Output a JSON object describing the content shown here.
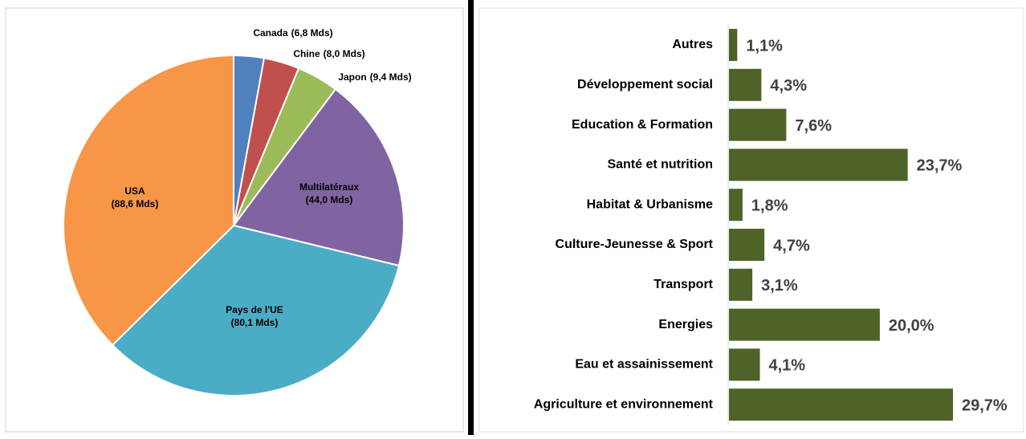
{
  "chart_data": [
    {
      "type": "pie",
      "categories": [
        "Canada",
        "Chine",
        "Japon",
        "Multilatéraux",
        "Pays de l'UE",
        "USA"
      ],
      "values": [
        6.8,
        8.0,
        9.4,
        44.0,
        80.1,
        88.6
      ],
      "value_labels": [
        "(6,8 Mds)",
        "(8,0 Mds)",
        "(9,4 Mds)",
        "(44,0 Mds)",
        "(80,1 Mds)",
        "(88,6 Mds)"
      ],
      "colors": [
        "#4f81bd",
        "#c0504d",
        "#9bbb59",
        "#8064a2",
        "#4bacc6",
        "#f79646"
      ]
    },
    {
      "type": "hbar",
      "categories": [
        "Autres",
        "Développement social",
        "Education & Formation",
        "Santé et nutrition",
        "Habitat & Urbanisme",
        "Culture-Jeunesse & Sport",
        "Transport",
        "Energies",
        "Eau et assainissement",
        "Agriculture et environnement"
      ],
      "values": [
        1.1,
        4.3,
        7.6,
        23.7,
        1.8,
        4.7,
        3.1,
        20.0,
        4.1,
        29.7
      ],
      "value_labels": [
        "1,1%",
        "4,3%",
        "7,6%",
        "23,7%",
        "1,8%",
        "4,7%",
        "3,1%",
        "20,0%",
        "4,1%",
        "29,7%"
      ],
      "color": "#4f6228"
    }
  ]
}
